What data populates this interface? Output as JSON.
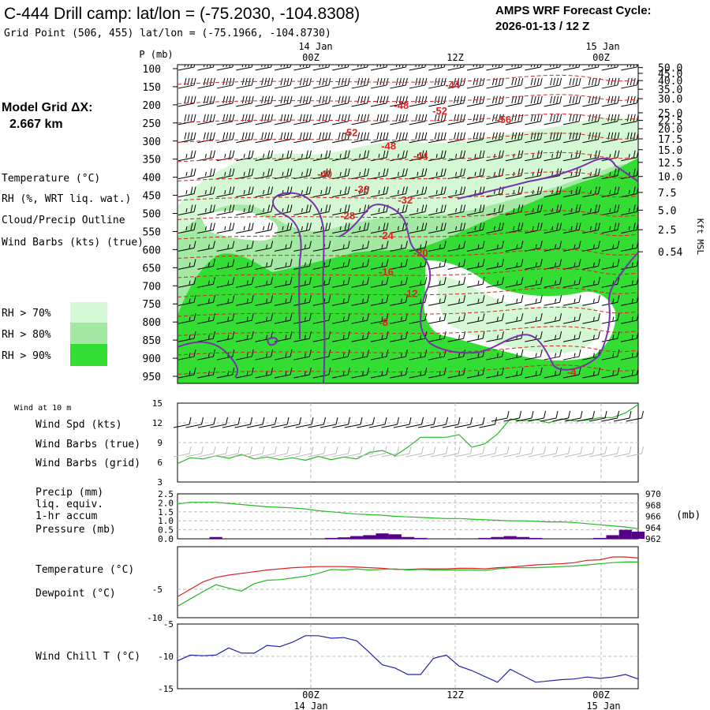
{
  "header": {
    "title": "C-444 Drill camp:  lat/lon = (-75.2030, -104.8308)",
    "grid_point": "Grid Point (506, 455) lat/lon = (-75.1966, -104.8730)",
    "forecast_label": "AMPS WRF Forecast Cycle:",
    "forecast_cycle": "2026-01-13 / 12  Z"
  },
  "legend": {
    "model_grid_label": "Model Grid ΔX:",
    "model_grid_value": "2.667 km",
    "temperature": "Temperature (°C)",
    "rh": "RH (%, WRT liq. wat.)",
    "cloud": "Cloud/Precip Outline",
    "wind_barbs": "Wind Barbs (kts) (true)",
    "rh_levels": [
      {
        "label": "RH > 70%",
        "color": "#d3f8d3"
      },
      {
        "label": "RH > 80%",
        "color": "#a3e8a3"
      },
      {
        "label": "RH > 90%",
        "color": "#33dd33"
      }
    ],
    "colors": {
      "temperature": "#dd2222",
      "rh": "#22bb22",
      "cloud": "#7733aa",
      "pressure": "#22bb22",
      "precip": "#550088",
      "dewpoint": "#22bb22",
      "windchill": "#2222aa",
      "wind_grid": "#bbbbbb"
    }
  },
  "time_axis": {
    "top_dates": [
      "14 Jan",
      "15 Jan"
    ],
    "top_ticks": [
      "00Z",
      "12Z",
      "00Z"
    ],
    "bottom_ticks": [
      "00Z",
      "12Z",
      "00Z"
    ],
    "bottom_dates": [
      "14 Jan",
      "15 Jan"
    ],
    "forecast_hours": [
      0,
      36
    ]
  },
  "chart_data": [
    {
      "type": "heatmap",
      "name": "vertical-cross-section",
      "x_hours": [
        0,
        36
      ],
      "left_axis_title": "P (mb)",
      "pressure_levels": [
        100,
        150,
        200,
        250,
        300,
        350,
        400,
        450,
        500,
        550,
        600,
        650,
        700,
        750,
        800,
        850,
        900,
        950
      ],
      "pressure_labels": [
        "100",
        "150",
        "200",
        "250",
        "300",
        "350",
        "400",
        "450",
        "500",
        "550",
        "600",
        "650",
        "700",
        "750",
        "800",
        "850",
        "900",
        "950"
      ],
      "right_axis_title": "Kft MSL",
      "height_labels": [
        "50.0",
        "45.0",
        "40.0",
        "35.0",
        "30.0",
        "25.0",
        "22.5",
        "20.0",
        "17.5",
        "15.0",
        "12.5",
        "10.0",
        "7.5",
        "5.0",
        "2.5",
        "0.54"
      ],
      "height_label_pressure": [
        97,
        113,
        133,
        157,
        183,
        222,
        243,
        266,
        294,
        324,
        359,
        398,
        442,
        491,
        545,
        606
      ],
      "temperature_contours": [
        {
          "value": "-44",
          "hour": 21.5,
          "p": 144
        },
        {
          "value": "-48",
          "hour": 17.5,
          "p": 200
        },
        {
          "value": "-52",
          "hour": 20.5,
          "p": 215
        },
        {
          "value": "-56",
          "hour": 25.5,
          "p": 240
        },
        {
          "value": "-52",
          "hour": 13.5,
          "p": 275
        },
        {
          "value": "-48",
          "hour": 16.5,
          "p": 312
        },
        {
          "value": "-44",
          "hour": 19.0,
          "p": 340
        },
        {
          "value": "-40",
          "hour": 11.5,
          "p": 390
        },
        {
          "value": "-36",
          "hour": 14.4,
          "p": 432
        },
        {
          "value": "-32",
          "hour": 17.8,
          "p": 462
        },
        {
          "value": "-28",
          "hour": 13.3,
          "p": 505
        },
        {
          "value": "-24",
          "hour": 16.3,
          "p": 560
        },
        {
          "value": "-20",
          "hour": 19.0,
          "p": 608
        },
        {
          "value": "-16",
          "hour": 16.3,
          "p": 660
        },
        {
          "value": "-12",
          "hour": 18.2,
          "p": 720
        },
        {
          "value": "-8",
          "hour": 16.1,
          "p": 800
        },
        {
          "value": "-4",
          "hour": 30.8,
          "p": 937
        }
      ]
    },
    {
      "type": "line",
      "name": "wind-10m",
      "title": "Wind at 10 m",
      "series_names": [
        "Wind Spd (kts)",
        "Wind Barbs (true)",
        "Wind Barbs (grid)"
      ],
      "ylim": [
        3,
        15
      ],
      "y_ticks": [
        "15",
        "12",
        "9",
        "6",
        "3"
      ],
      "x": [
        0,
        1,
        2,
        3,
        4,
        5,
        6,
        7,
        8,
        9,
        10,
        11,
        12,
        13,
        14,
        15,
        16,
        17,
        18,
        19,
        20,
        21,
        22,
        23,
        24,
        25,
        26,
        27,
        28,
        29,
        30,
        31,
        32,
        33,
        34,
        35,
        36
      ],
      "values": [
        5.8,
        6.7,
        6.5,
        7.0,
        6.6,
        7.2,
        6.5,
        6.8,
        6.4,
        6.7,
        6.3,
        6.9,
        6.4,
        6.8,
        6.5,
        7.5,
        7.8,
        7.0,
        8.3,
        9.8,
        9.8,
        9.8,
        10.2,
        8.3,
        8.8,
        10.3,
        12.6,
        12.3,
        12.5,
        12.0,
        12.6,
        12.3,
        12.4,
        12.8,
        12.8,
        13.5,
        14.8
      ]
    },
    {
      "type": "bar",
      "name": "precip-pressure",
      "series_names": [
        "Precip (mm)",
        "liq. equiv.",
        "1-hr accum",
        "Pressure (mb)"
      ],
      "left_ylim": [
        0,
        2.5
      ],
      "left_ticks": [
        "2.5",
        "2.0",
        "1.5",
        "1.0",
        "0.5",
        "0.0"
      ],
      "right_ylim": [
        962,
        970
      ],
      "right_ticks": [
        "970",
        "968",
        "966",
        "964",
        "962"
      ],
      "right_axis_title": "(mb)",
      "x": [
        0,
        1,
        2,
        3,
        4,
        5,
        6,
        7,
        8,
        9,
        10,
        11,
        12,
        13,
        14,
        15,
        16,
        17,
        18,
        19,
        20,
        21,
        22,
        23,
        24,
        25,
        26,
        27,
        28,
        29,
        30,
        31,
        32,
        33,
        34,
        35,
        36
      ],
      "precip": [
        0,
        0,
        0,
        0.1,
        0,
        0,
        0,
        0,
        0,
        0,
        0,
        0,
        0.05,
        0.08,
        0.15,
        0.2,
        0.3,
        0.25,
        0.1,
        0.05,
        0,
        0,
        0,
        0,
        0.05,
        0.1,
        0.15,
        0.1,
        0.05,
        0,
        0,
        0,
        0,
        0.05,
        0.2,
        0.5,
        0.4
      ],
      "pressure": [
        968.2,
        968.5,
        968.5,
        968.5,
        968.3,
        968.1,
        967.9,
        967.7,
        967.6,
        967.5,
        967.3,
        967.0,
        966.8,
        966.6,
        966.4,
        966.3,
        966.2,
        966.0,
        965.9,
        965.8,
        965.7,
        965.6,
        965.6,
        965.5,
        965.4,
        965.3,
        965.2,
        965.2,
        965.1,
        965.0,
        965.0,
        964.9,
        964.7,
        964.5,
        964.3,
        964.1,
        963.8
      ]
    },
    {
      "type": "line",
      "name": "temperature-dewpoint",
      "series_names": [
        "Temperature (°C)",
        "Dewpoint (°C)"
      ],
      "ylim": [
        -10,
        2.5
      ],
      "y_ticks": [
        "-5",
        "-10"
      ],
      "x": [
        0,
        1,
        2,
        3,
        4,
        5,
        6,
        7,
        8,
        9,
        10,
        11,
        12,
        13,
        14,
        15,
        16,
        17,
        18,
        19,
        20,
        21,
        22,
        23,
        24,
        25,
        26,
        27,
        28,
        29,
        30,
        31,
        32,
        33,
        34,
        35,
        36
      ],
      "temperature": [
        -6.3,
        -5.0,
        -3.7,
        -2.9,
        -2.5,
        -2.2,
        -1.9,
        -1.6,
        -1.4,
        -1.2,
        -1.1,
        -1.0,
        -1.0,
        -1.0,
        -1.1,
        -1.2,
        -1.3,
        -1.5,
        -1.5,
        -1.4,
        -1.4,
        -1.4,
        -1.3,
        -1.3,
        -1.4,
        -1.2,
        -1.1,
        -0.9,
        -0.7,
        -0.6,
        -0.5,
        -0.3,
        0.1,
        0.2,
        0.7,
        0.7,
        0.5
      ],
      "dewpoint": [
        -8.0,
        -6.7,
        -5.4,
        -4.2,
        -4.8,
        -5.3,
        -4.0,
        -3.4,
        -3.3,
        -3.0,
        -2.7,
        -2.2,
        -1.5,
        -1.6,
        -1.4,
        -1.6,
        -1.5,
        -1.4,
        -1.6,
        -1.5,
        -1.6,
        -1.6,
        -1.6,
        -1.6,
        -1.7,
        -1.4,
        -1.2,
        -1.2,
        -1.2,
        -1.1,
        -1.0,
        -0.9,
        -0.7,
        -0.5,
        -0.3,
        -0.2,
        -0.2
      ]
    },
    {
      "type": "line",
      "name": "wind-chill",
      "series_names": [
        "Wind Chill T (°C)"
      ],
      "ylim": [
        -15,
        -5
      ],
      "y_ticks": [
        "-5",
        "-10",
        "-15"
      ],
      "x": [
        0,
        1,
        2,
        3,
        4,
        5,
        6,
        7,
        8,
        9,
        10,
        11,
        12,
        13,
        14,
        15,
        16,
        17,
        18,
        19,
        20,
        21,
        22,
        23,
        24,
        25,
        26,
        27,
        28,
        29,
        30,
        31,
        32,
        33,
        34,
        35,
        36
      ],
      "values": [
        -10.7,
        -9.8,
        -9.9,
        -9.8,
        -8.7,
        -9.5,
        -9.5,
        -8.3,
        -8.5,
        -7.8,
        -6.8,
        -6.8,
        -7.2,
        -7.1,
        -7.6,
        -9.4,
        -11.3,
        -11.8,
        -12.8,
        -12.8,
        -10.3,
        -9.8,
        -11.5,
        -12.2,
        -13.1,
        -14.0,
        -12.0,
        -13.0,
        -14.0,
        -13.8,
        -13.6,
        -13.5,
        -13.2,
        -13.4,
        -13.2,
        -12.8,
        -13.5
      ]
    }
  ]
}
